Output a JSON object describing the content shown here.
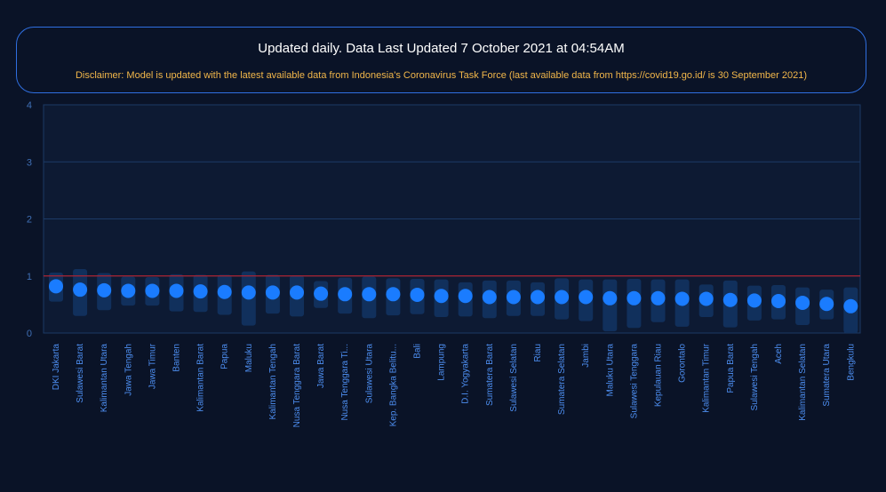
{
  "notice": {
    "title": "Updated daily. Data Last Updated 7 October 2021 at 04:54AM",
    "disclaimer": "Disclaimer: Model is updated with the latest available data from Indonesia's Coronavirus Task Force (last available data from https://covid19.go.id/ is 30 September 2021)"
  },
  "colors": {
    "background": "#0a1327",
    "plot_background": "#0d1a33",
    "point": "#1a7cff",
    "interval": "#11305c",
    "threshold_line": "#d0202a",
    "grid": "#1c3a66",
    "notice_border": "#2f6fe0",
    "disclaimer": "#f2b74a"
  },
  "chart_data": {
    "type": "scatter",
    "title": "",
    "xlabel": "",
    "ylabel": "",
    "ylim": [
      0,
      4
    ],
    "yticks": [
      0,
      1,
      2,
      3,
      4
    ],
    "grid": true,
    "reference_line": 1,
    "categories": [
      "DKI Jakarta",
      "Sulawesi Barat",
      "Kalimantan Utara",
      "Jawa Tengah",
      "Jawa Timur",
      "Banten",
      "Kalimantan Barat",
      "Papua",
      "Maluku",
      "Kalimantan Tengah",
      "Nusa Tenggara Barat",
      "Jawa Barat",
      "Nusa Tenggara Ti...",
      "Sulawesi Utara",
      "Kep. Bangka Belitu...",
      "Bali",
      "Lampung",
      "D.I. Yogyakarta",
      "Sumatera Barat",
      "Sulawesi Selatan",
      "Riau",
      "Sumatera Selatan",
      "Jambi",
      "Maluku Utara",
      "Sulawesi Tenggara",
      "Kepulauan Riau",
      "Gorontalo",
      "Kalimantan Timur",
      "Papua Barat",
      "Sulawesi Tengah",
      "Aceh",
      "Kalimantan Selatan",
      "Sumatera Utara",
      "Bengkulu"
    ],
    "values": [
      0.82,
      0.76,
      0.75,
      0.74,
      0.74,
      0.74,
      0.73,
      0.72,
      0.71,
      0.71,
      0.71,
      0.69,
      0.68,
      0.68,
      0.68,
      0.67,
      0.65,
      0.65,
      0.63,
      0.63,
      0.63,
      0.63,
      0.63,
      0.61,
      0.61,
      0.61,
      0.6,
      0.6,
      0.58,
      0.57,
      0.56,
      0.53,
      0.51,
      0.47
    ],
    "lower": [
      0.55,
      0.3,
      0.4,
      0.48,
      0.48,
      0.38,
      0.37,
      0.32,
      0.13,
      0.34,
      0.29,
      0.44,
      0.34,
      0.26,
      0.31,
      0.33,
      0.28,
      0.29,
      0.26,
      0.3,
      0.3,
      0.24,
      0.21,
      0.03,
      0.09,
      0.19,
      0.11,
      0.28,
      0.1,
      0.22,
      0.24,
      0.14,
      0.24,
      0.0
    ],
    "upper": [
      1.06,
      1.12,
      1.05,
      0.99,
      0.98,
      1.03,
      1.02,
      1.02,
      1.08,
      1.02,
      1.01,
      0.91,
      0.97,
      0.99,
      0.96,
      0.95,
      0.94,
      0.89,
      0.92,
      0.92,
      0.89,
      0.96,
      0.94,
      0.94,
      0.95,
      0.94,
      0.94,
      0.85,
      0.92,
      0.83,
      0.84,
      0.8,
      0.76,
      0.8
    ]
  }
}
